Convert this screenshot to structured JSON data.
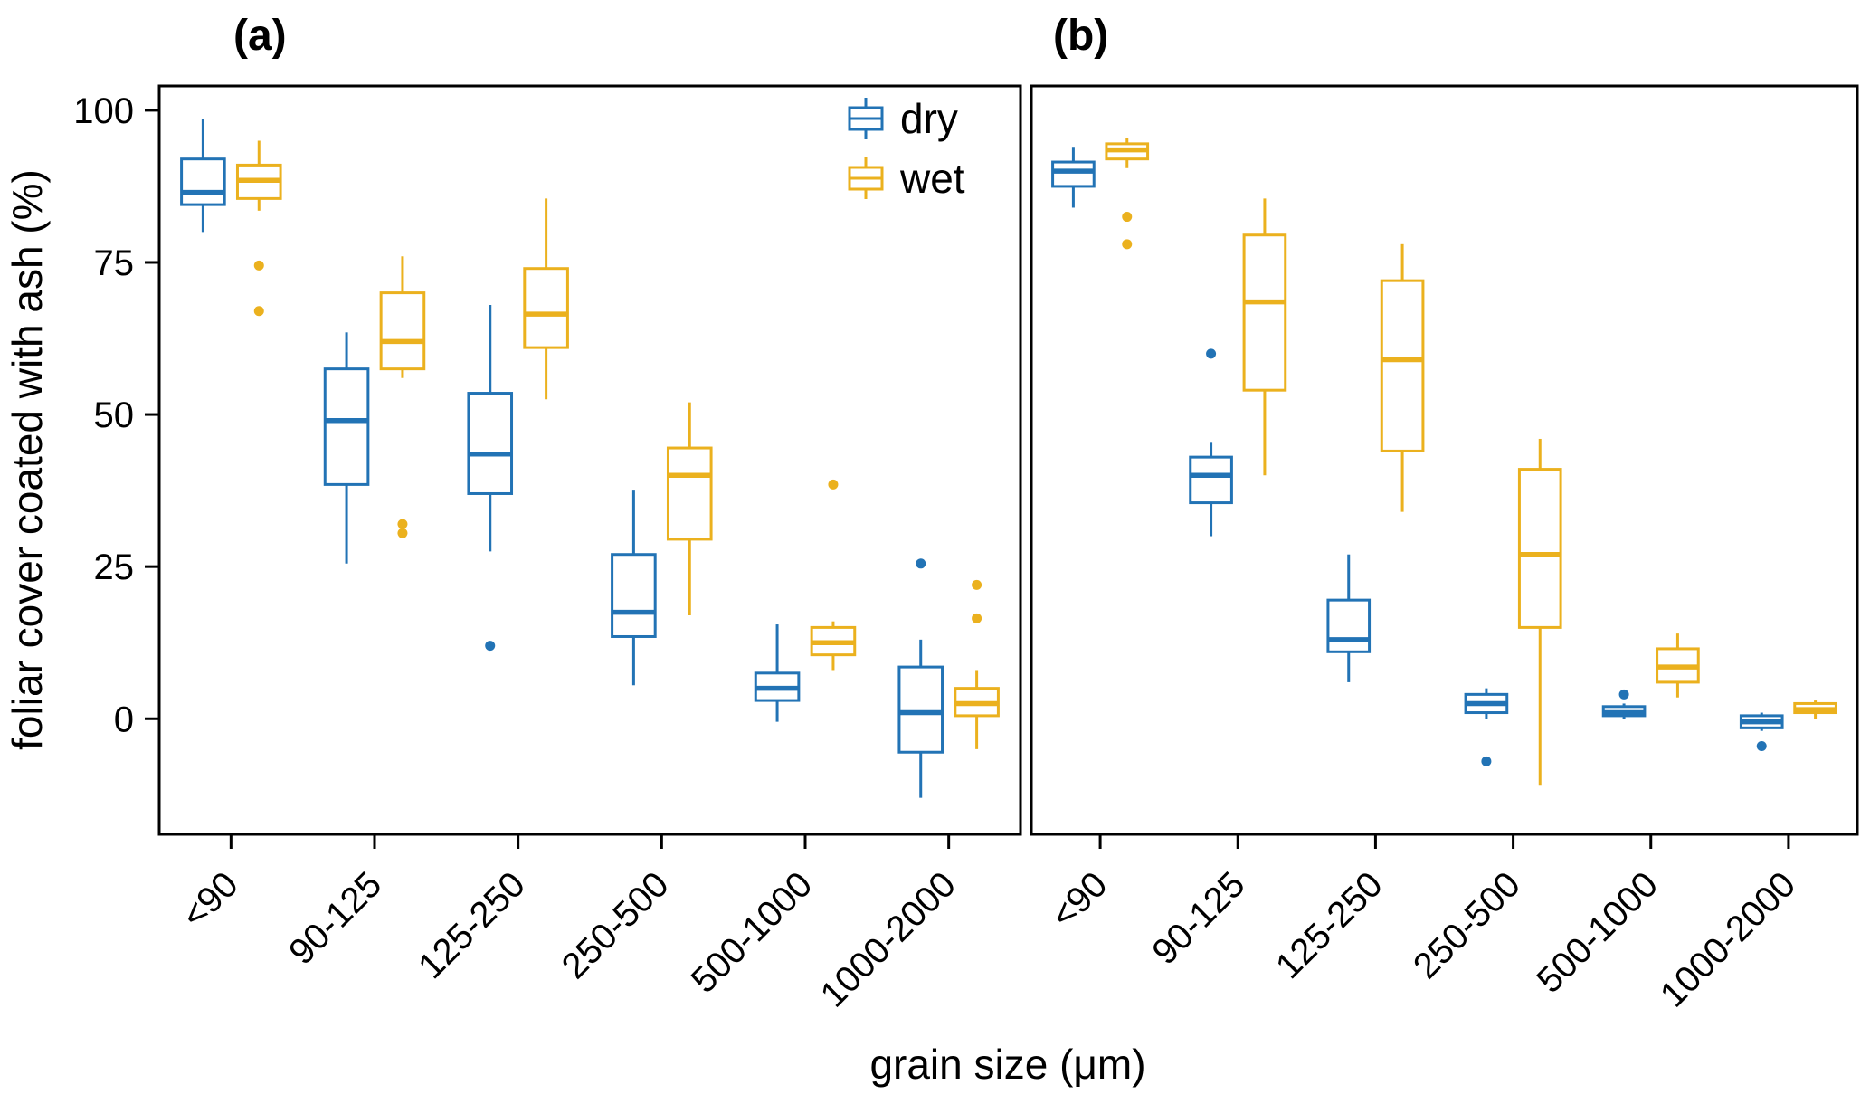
{
  "chart_data": {
    "type": "boxplot",
    "title": "",
    "xlabel": "grain size (μm)",
    "ylabel": "foliar cover coated with ash (%)",
    "ylim": [
      -19,
      104
    ],
    "yticks": [
      0,
      25,
      50,
      75,
      100
    ],
    "grid": "off",
    "legend_position": "top-right-inside-panel-a",
    "categories": [
      "<90",
      "90-125",
      "125-250",
      "250-500",
      "500-1000",
      "1000-2000"
    ],
    "series": [
      {
        "name": "dry",
        "color": "#2273B5"
      },
      {
        "name": "wet",
        "color": "#EBB11E"
      }
    ],
    "panels": [
      {
        "label": "(a)",
        "boxes": {
          "dry": [
            {
              "low": 80,
              "q1": 84.5,
              "median": 86.5,
              "q3": 92,
              "high": 98.5,
              "outliers": []
            },
            {
              "low": 25.5,
              "q1": 38.5,
              "median": 49,
              "q3": 57.5,
              "high": 63.5,
              "outliers": []
            },
            {
              "low": 27.5,
              "q1": 37,
              "median": 43.5,
              "q3": 53.5,
              "high": 68,
              "outliers": [
                12
              ]
            },
            {
              "low": 5.5,
              "q1": 13.5,
              "median": 17.5,
              "q3": 27,
              "high": 37.5,
              "outliers": []
            },
            {
              "low": -0.5,
              "q1": 3,
              "median": 5,
              "q3": 7.5,
              "high": 15.5,
              "outliers": []
            },
            {
              "low": -13,
              "q1": -5.5,
              "median": 1,
              "q3": 8.5,
              "high": 13,
              "outliers": [
                25.5
              ]
            }
          ],
          "wet": [
            {
              "low": 83.5,
              "q1": 85.5,
              "median": 88.5,
              "q3": 91,
              "high": 95,
              "outliers": [
                74.5,
                67
              ]
            },
            {
              "low": 56,
              "q1": 57.5,
              "median": 62,
              "q3": 70,
              "high": 76,
              "outliers": [
                32,
                30.5
              ]
            },
            {
              "low": 52.5,
              "q1": 61,
              "median": 66.5,
              "q3": 74,
              "high": 85.5,
              "outliers": []
            },
            {
              "low": 17,
              "q1": 29.5,
              "median": 40,
              "q3": 44.5,
              "high": 52,
              "outliers": []
            },
            {
              "low": 8,
              "q1": 10.5,
              "median": 12.5,
              "q3": 15,
              "high": 16,
              "outliers": [
                38.5
              ]
            },
            {
              "low": -5,
              "q1": 0.5,
              "median": 2.5,
              "q3": 5,
              "high": 8,
              "outliers": [
                22,
                16.5
              ]
            }
          ]
        }
      },
      {
        "label": "(b)",
        "boxes": {
          "dry": [
            {
              "low": 84,
              "q1": 87.5,
              "median": 90,
              "q3": 91.5,
              "high": 94,
              "outliers": []
            },
            {
              "low": 30,
              "q1": 35.5,
              "median": 40,
              "q3": 43,
              "high": 45.5,
              "outliers": [
                60
              ]
            },
            {
              "low": 6,
              "q1": 11,
              "median": 13,
              "q3": 19.5,
              "high": 27,
              "outliers": []
            },
            {
              "low": 0,
              "q1": 1,
              "median": 2.5,
              "q3": 4,
              "high": 5,
              "outliers": [
                -7
              ]
            },
            {
              "low": 0,
              "q1": 0.5,
              "median": 1,
              "q3": 2,
              "high": 2.5,
              "outliers": [
                4
              ]
            },
            {
              "low": -2,
              "q1": -1.5,
              "median": -0.5,
              "q3": 0.5,
              "high": 1,
              "outliers": [
                -4.5
              ]
            }
          ],
          "wet": [
            {
              "low": 90.5,
              "q1": 92,
              "median": 93.5,
              "q3": 94.5,
              "high": 95.5,
              "outliers": [
                82.5,
                78
              ]
            },
            {
              "low": 40,
              "q1": 54,
              "median": 68.5,
              "q3": 79.5,
              "high": 85.5,
              "outliers": []
            },
            {
              "low": 34,
              "q1": 44,
              "median": 59,
              "q3": 72,
              "high": 78,
              "outliers": []
            },
            {
              "low": -11,
              "q1": 15,
              "median": 27,
              "q3": 41,
              "high": 46,
              "outliers": []
            },
            {
              "low": 3.5,
              "q1": 6,
              "median": 8.5,
              "q3": 11.5,
              "high": 14,
              "outliers": []
            },
            {
              "low": 0,
              "q1": 1,
              "median": 1.5,
              "q3": 2.5,
              "high": 3,
              "outliers": []
            }
          ]
        }
      }
    ]
  }
}
